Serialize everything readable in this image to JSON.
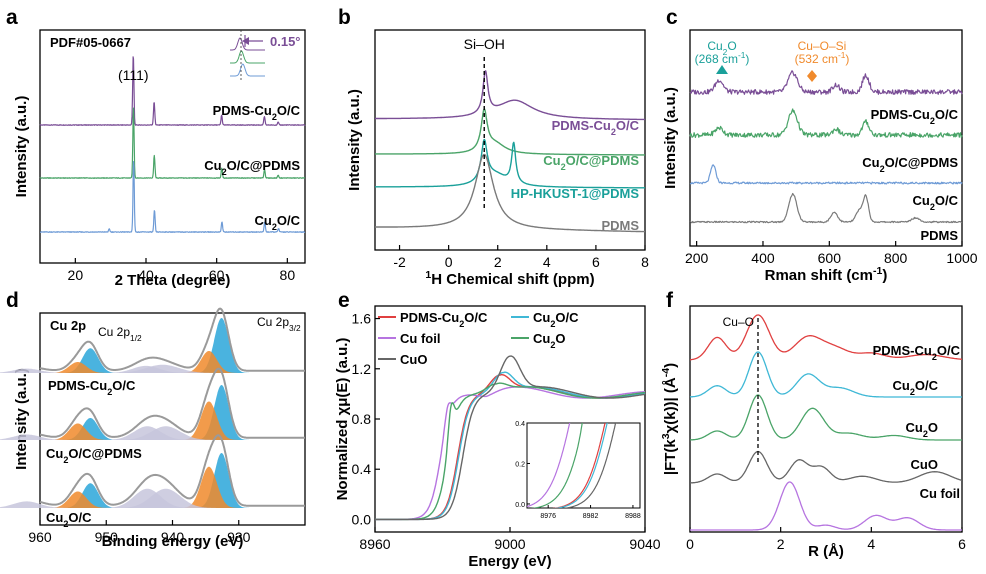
{
  "colors": {
    "pdms_cu2o_c": "#7a4e96",
    "cu2o_c_pdms": "#4aa468",
    "cu2o_c": "#6e9bd6",
    "hp_hkust": "#1aa09a",
    "pdms": "#7a7a7a",
    "cu2o_ref": "#4aa468",
    "cuo": "#666666",
    "cu_foil": "#b674e0",
    "pdms_cu2o_c_e": "#e04040",
    "cu2o_c_e": "#3fb8d6",
    "peak_blue": "#2aa6d9",
    "peak_orange": "#f08a2c",
    "peak_lavender": "#c7c5dc"
  },
  "chart_data": [
    {
      "panel": "a",
      "type": "line",
      "label": "a",
      "xlabel": "2 Theta (degree)",
      "ylabel": "Intensity (a.u.)",
      "xlim": [
        10,
        85
      ],
      "xticks": [
        "20",
        "40",
        "60",
        "80"
      ],
      "annotations": {
        "pdf": "PDF#05-0667",
        "hkl": "(111)",
        "shift": "0.15°"
      },
      "series": [
        {
          "name": "PDMS-Cu2O/C",
          "label_main": "PDMS-Cu",
          "label_sub": "2",
          "label_rest": "O/C",
          "peaks": [
            [
              36.4,
              1.0
            ],
            [
              42.3,
              0.33
            ],
            [
              61.4,
              0.14
            ],
            [
              73.5,
              0.12
            ],
            [
              77.4,
              0.04
            ]
          ]
        },
        {
          "name": "Cu2O/C@PDMS",
          "label_main": "Cu",
          "label_sub": "2",
          "label_rest": "O/C@PDMS",
          "peaks": [
            [
              36.45,
              1.0
            ],
            [
              42.35,
              0.32
            ],
            [
              61.45,
              0.14
            ],
            [
              73.55,
              0.12
            ],
            [
              77.4,
              0.04
            ]
          ]
        },
        {
          "name": "Cu2O/C",
          "label_main": "Cu",
          "label_sub": "2",
          "label_rest": "O/C",
          "peaks": [
            [
              36.5,
              1.0
            ],
            [
              42.4,
              0.3
            ],
            [
              61.5,
              0.14
            ],
            [
              73.6,
              0.14
            ],
            [
              77.5,
              0.05
            ],
            [
              29.6,
              0.04
            ]
          ]
        }
      ]
    },
    {
      "panel": "b",
      "type": "line",
      "label": "b",
      "xlabel_sup": "1",
      "xlabel": "H Chemical shift (ppm)",
      "ylabel": "Intensity (a.u.)",
      "xlim": [
        -3,
        8
      ],
      "xticks": [
        "-2",
        "0",
        "2",
        "4",
        "6",
        "8"
      ],
      "annotations": {
        "peak": "Si–OH"
      },
      "series": [
        {
          "name": "PDMS-Cu2O/C",
          "label_main": "PDMS-Cu",
          "label_sub": "2",
          "label_rest": "O/C",
          "peaks": [
            [
              1.5,
              1.0,
              0.12
            ],
            [
              2.7,
              0.45,
              0.9
            ]
          ]
        },
        {
          "name": "Cu2O/C@PDMS",
          "label_main": "Cu",
          "label_sub": "2",
          "label_rest": "O/C@PDMS",
          "peaks": [
            [
              1.45,
              1.0,
              0.15
            ],
            [
              1.9,
              0.25,
              0.5
            ]
          ]
        },
        {
          "name": "HP-HKUST-1@PDMS",
          "label_main": "HP-HKUST-1@PDMS",
          "label_sub": "",
          "label_rest": "",
          "peaks": [
            [
              1.45,
              1.0,
              0.15
            ],
            [
              2.65,
              1.0,
              0.1
            ],
            [
              1.9,
              0.3,
              0.6
            ]
          ]
        },
        {
          "name": "PDMS",
          "label_main": "PDMS",
          "label_sub": "",
          "label_rest": "",
          "peaks": [
            [
              1.45,
              1.0,
              0.45
            ]
          ]
        }
      ]
    },
    {
      "panel": "c",
      "type": "line",
      "label": "c",
      "xlabel": "Rman shift (cm",
      "xlabel_sup": "-1",
      "xlabel_end": ")",
      "ylabel": "Intensity (a.u.)",
      "xlim": [
        180,
        1000
      ],
      "xticks": [
        "200",
        "400",
        "600",
        "800",
        "1000"
      ],
      "annotations": {
        "cu2o": "Cu",
        "cu2o_sub": "2",
        "cu2o_rest": "O",
        "cu2o_pos": "(268 cm",
        "cu2o_pos_sup": "-1",
        "cu2o_pos_end": ")",
        "cuosi": "Cu–O–Si",
        "cuosi_pos": "(532 cm",
        "cuosi_pos_sup": "-1",
        "cuosi_pos_end": ")"
      },
      "series": [
        {
          "name": "PDMS-Cu2O/C",
          "label_main": "PDMS-Cu",
          "label_sub": "2",
          "label_rest": "O/C",
          "peaks": [
            [
              268,
              0.5,
              12
            ],
            [
              490,
              0.8,
              14
            ],
            [
              620,
              0.3,
              10
            ],
            [
              710,
              0.7,
              10
            ]
          ]
        },
        {
          "name": "Cu2O/C@PDMS",
          "label_main": "Cu",
          "label_sub": "2",
          "label_rest": "O/C@PDMS",
          "peaks": [
            [
              268,
              0.3,
              12
            ],
            [
              490,
              1.0,
              14
            ],
            [
              620,
              0.25,
              10
            ],
            [
              710,
              0.55,
              10
            ]
          ]
        },
        {
          "name": "Cu2O/C",
          "label_main": "Cu",
          "label_sub": "2",
          "label_rest": "O/C",
          "peaks": [
            [
              250,
              1.0,
              8
            ]
          ]
        },
        {
          "name": "PDMS",
          "label_main": "PDMS",
          "label_sub": "",
          "label_rest": "",
          "peaks": [
            [
              490,
              1.0,
              12
            ],
            [
              615,
              0.35,
              10
            ],
            [
              690,
              0.4,
              10
            ],
            [
              710,
              0.9,
              8
            ],
            [
              860,
              0.15,
              12
            ]
          ]
        }
      ]
    },
    {
      "panel": "d",
      "type": "line",
      "label": "d",
      "xlabel": "Binding energy (eV)",
      "ylabel": "Intensity (a.u.)",
      "xlim": [
        960,
        920
      ],
      "xticks": [
        "960",
        "950",
        "940",
        "930"
      ],
      "annotations": {
        "cu2p": "Cu 2p",
        "p12": "Cu 2p",
        "p12_sub": "1/2",
        "p32": "Cu 2p",
        "p32_sub": "3/2"
      },
      "series": [
        {
          "name": "PDMS-Cu2O/C",
          "label_main": "PDMS-Cu",
          "label_sub": "2",
          "label_rest": "O/C",
          "peaks": [
            [
              932.6,
              1.0,
              1.1,
              "b"
            ],
            [
              934.5,
              0.4,
              1.2,
              "o"
            ],
            [
              952.4,
              0.45,
              1.2,
              "b"
            ],
            [
              954.3,
              0.2,
              1.3,
              "o"
            ],
            [
              941.5,
              0.15,
              2.5,
              "l"
            ],
            [
              944,
              0.13,
              2.0,
              "l"
            ],
            [
              962,
              0.08,
              2.0,
              "l"
            ]
          ]
        },
        {
          "name": "Cu2O/C@PDMS",
          "label_main": "Cu",
          "label_sub": "2",
          "label_rest": "O/C@PDMS",
          "peaks": [
            [
              932.6,
              1.0,
              1.1,
              "b"
            ],
            [
              934.5,
              0.7,
              1.2,
              "o"
            ],
            [
              952.4,
              0.4,
              1.2,
              "b"
            ],
            [
              954.3,
              0.3,
              1.3,
              "o"
            ],
            [
              941,
              0.25,
              2.2,
              "l"
            ],
            [
              943.8,
              0.25,
              2.0,
              "l"
            ],
            [
              962,
              0.1,
              2.0,
              "l"
            ]
          ]
        },
        {
          "name": "Cu2O/C",
          "label_main": "Cu",
          "label_sub": "2",
          "label_rest": "O/C",
          "peaks": [
            [
              932.6,
              1.0,
              1.1,
              "b"
            ],
            [
              934.5,
              0.75,
              1.2,
              "o"
            ],
            [
              952.4,
              0.45,
              1.2,
              "b"
            ],
            [
              954.3,
              0.3,
              1.3,
              "o"
            ],
            [
              941,
              0.35,
              2.2,
              "l"
            ],
            [
              943.8,
              0.35,
              2.0,
              "l"
            ],
            [
              962,
              0.12,
              2.0,
              "l"
            ]
          ]
        }
      ]
    },
    {
      "panel": "e",
      "type": "line",
      "label": "e",
      "xlabel": "Energy (eV)",
      "ylabel": "Normalized χμ(E) (a.u.)",
      "xlim": [
        8960,
        9040
      ],
      "ylim": [
        -0.1,
        1.7
      ],
      "xticks": [
        "8960",
        "9000",
        "9040"
      ],
      "yticks": [
        "0.0",
        "0.4",
        "0.8",
        "1.2",
        "1.6"
      ],
      "inset": {
        "xlim": [
          8973,
          8989
        ],
        "ylim": [
          -0.02,
          0.4
        ],
        "xticks": [
          "8976",
          "8982",
          "8988"
        ],
        "yticks": [
          "0.0",
          "0.2",
          "0.4"
        ]
      },
      "series": [
        {
          "name": "PDMS-Cu2O/C",
          "label_main": "PDMS-Cu",
          "label_sub": "2",
          "label_rest": "O/C",
          "e0": 8984.5,
          "peak": 8997,
          "peakh": 1.15
        },
        {
          "name": "Cu2O/C",
          "label_main": "Cu",
          "label_sub": "2",
          "label_rest": "O/C",
          "e0": 8984.8,
          "peak": 8998,
          "peakh": 1.17
        },
        {
          "name": "Cu foil",
          "label_main": "Cu foil",
          "label_sub": "",
          "label_rest": "",
          "e0": 8979.5,
          "peak": 8993,
          "peakh": 0.98
        },
        {
          "name": "Cu2O",
          "label_main": "Cu",
          "label_sub": "2",
          "label_rest": "O",
          "e0": 8981.5,
          "peak": 8996,
          "peakh": 1.08
        },
        {
          "name": "CuO",
          "label_main": "CuO",
          "label_sub": "",
          "label_rest": "",
          "e0": 8986,
          "peak": 9000,
          "peakh": 1.3
        }
      ]
    },
    {
      "panel": "f",
      "type": "line",
      "label": "f",
      "xlabel": "R (Å)",
      "ylabel": "|FT(k",
      "ylabel_sup": "3",
      "ylabel_end": "χ(k))| (Å",
      "ylabel_sup2": "-4",
      "ylabel_close": ")",
      "xlim": [
        0,
        6
      ],
      "xticks": [
        "0",
        "2",
        "4",
        "6"
      ],
      "annotations": {
        "cuo_bond": "Cu–O"
      },
      "series": [
        {
          "name": "PDMS-Cu2O/C",
          "label_main": "PDMS-Cu",
          "label_sub": "2",
          "label_rest": "O/C",
          "peaks": [
            [
              0.6,
              0.5,
              0.2
            ],
            [
              1.5,
              1.0,
              0.25
            ],
            [
              2.6,
              0.5,
              0.3
            ],
            [
              3.2,
              0.25,
              0.3
            ],
            [
              4.0,
              0.15,
              0.3
            ],
            [
              5.2,
              0.12,
              0.4
            ]
          ]
        },
        {
          "name": "Cu2O/C",
          "label_main": "Cu",
          "label_sub": "2",
          "label_rest": "O/C",
          "peaks": [
            [
              0.6,
              0.25,
              0.2
            ],
            [
              1.5,
              1.0,
              0.2
            ],
            [
              2.6,
              0.5,
              0.25
            ],
            [
              3.3,
              0.2,
              0.3
            ]
          ]
        },
        {
          "name": "Cu2O",
          "label_main": "Cu",
          "label_sub": "2",
          "label_rest": "O",
          "peaks": [
            [
              0.6,
              0.2,
              0.2
            ],
            [
              1.5,
              1.0,
              0.2
            ],
            [
              2.7,
              0.7,
              0.25
            ],
            [
              3.5,
              0.15,
              0.3
            ],
            [
              4.5,
              0.1,
              0.3
            ]
          ]
        },
        {
          "name": "CuO",
          "label_main": "CuO",
          "label_sub": "",
          "label_rest": "",
          "peaks": [
            [
              0.6,
              0.2,
              0.2
            ],
            [
              1.5,
              0.7,
              0.2
            ],
            [
              2.4,
              0.5,
              0.2
            ],
            [
              2.9,
              0.35,
              0.2
            ],
            [
              3.8,
              0.15,
              0.3
            ],
            [
              5.4,
              0.25,
              0.35
            ]
          ]
        },
        {
          "name": "Cu foil",
          "label_main": "Cu foil",
          "label_sub": "",
          "label_rest": "",
          "peaks": [
            [
              2.2,
              1.0,
              0.22
            ],
            [
              4.1,
              0.3,
              0.25
            ],
            [
              4.8,
              0.25,
              0.25
            ],
            [
              3.0,
              0.1,
              0.2
            ]
          ]
        }
      ]
    }
  ]
}
